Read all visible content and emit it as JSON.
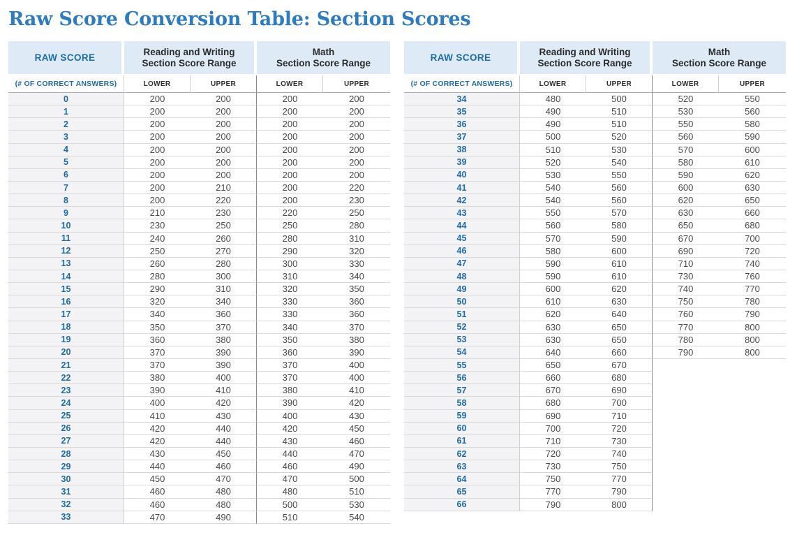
{
  "title": "Raw Score Conversion Table: Section Scores",
  "colors": {
    "title_blue": "#2E7BBF",
    "accent_blue": "#1E6BAC",
    "header_bg": "#DEEBF7"
  },
  "headers": {
    "raw_score": "RAW SCORE",
    "raw_score_sub": "(# OF CORRECT ANSWERS)",
    "reading_writing_line1": "Reading and Writing",
    "math_line1": "Math",
    "range_line2": "Section Score Range",
    "lower": "LOWER",
    "upper": "UPPER"
  },
  "left_table": {
    "rows": [
      [
        0,
        200,
        200,
        200,
        200
      ],
      [
        1,
        200,
        200,
        200,
        200
      ],
      [
        2,
        200,
        200,
        200,
        200
      ],
      [
        3,
        200,
        200,
        200,
        200
      ],
      [
        4,
        200,
        200,
        200,
        200
      ],
      [
        5,
        200,
        200,
        200,
        200
      ],
      [
        6,
        200,
        200,
        200,
        200
      ],
      [
        7,
        200,
        210,
        200,
        220
      ],
      [
        8,
        200,
        220,
        200,
        230
      ],
      [
        9,
        210,
        230,
        220,
        250
      ],
      [
        10,
        230,
        250,
        250,
        280
      ],
      [
        11,
        240,
        260,
        280,
        310
      ],
      [
        12,
        250,
        270,
        290,
        320
      ],
      [
        13,
        260,
        280,
        300,
        330
      ],
      [
        14,
        280,
        300,
        310,
        340
      ],
      [
        15,
        290,
        310,
        320,
        350
      ],
      [
        16,
        320,
        340,
        330,
        360
      ],
      [
        17,
        340,
        360,
        330,
        360
      ],
      [
        18,
        350,
        370,
        340,
        370
      ],
      [
        19,
        360,
        380,
        350,
        380
      ],
      [
        20,
        370,
        390,
        360,
        390
      ],
      [
        21,
        370,
        390,
        370,
        400
      ],
      [
        22,
        380,
        400,
        370,
        400
      ],
      [
        23,
        390,
        410,
        380,
        410
      ],
      [
        24,
        400,
        420,
        390,
        420
      ],
      [
        25,
        410,
        430,
        400,
        430
      ],
      [
        26,
        420,
        440,
        420,
        450
      ],
      [
        27,
        420,
        440,
        430,
        460
      ],
      [
        28,
        430,
        450,
        440,
        470
      ],
      [
        29,
        440,
        460,
        460,
        490
      ],
      [
        30,
        450,
        470,
        470,
        500
      ],
      [
        31,
        460,
        480,
        480,
        510
      ],
      [
        32,
        460,
        480,
        500,
        530
      ],
      [
        33,
        470,
        490,
        510,
        540
      ]
    ]
  },
  "right_table": {
    "rows": [
      [
        34,
        480,
        500,
        520,
        550
      ],
      [
        35,
        490,
        510,
        530,
        560
      ],
      [
        36,
        490,
        510,
        550,
        580
      ],
      [
        37,
        500,
        520,
        560,
        590
      ],
      [
        38,
        510,
        530,
        570,
        600
      ],
      [
        39,
        520,
        540,
        580,
        610
      ],
      [
        40,
        530,
        550,
        590,
        620
      ],
      [
        41,
        540,
        560,
        600,
        630
      ],
      [
        42,
        540,
        560,
        620,
        650
      ],
      [
        43,
        550,
        570,
        630,
        660
      ],
      [
        44,
        560,
        580,
        650,
        680
      ],
      [
        45,
        570,
        590,
        670,
        700
      ],
      [
        46,
        580,
        600,
        690,
        720
      ],
      [
        47,
        590,
        610,
        710,
        740
      ],
      [
        48,
        590,
        610,
        730,
        760
      ],
      [
        49,
        600,
        620,
        740,
        770
      ],
      [
        50,
        610,
        630,
        750,
        780
      ],
      [
        51,
        620,
        640,
        760,
        790
      ],
      [
        52,
        630,
        650,
        770,
        800
      ],
      [
        53,
        630,
        650,
        780,
        800
      ],
      [
        54,
        640,
        660,
        790,
        800
      ],
      [
        55,
        650,
        670,
        null,
        null
      ],
      [
        56,
        660,
        680,
        null,
        null
      ],
      [
        57,
        670,
        690,
        null,
        null
      ],
      [
        58,
        680,
        700,
        null,
        null
      ],
      [
        59,
        690,
        710,
        null,
        null
      ],
      [
        60,
        700,
        720,
        null,
        null
      ],
      [
        61,
        710,
        730,
        null,
        null
      ],
      [
        62,
        720,
        740,
        null,
        null
      ],
      [
        63,
        730,
        750,
        null,
        null
      ],
      [
        64,
        750,
        770,
        null,
        null
      ],
      [
        65,
        770,
        790,
        null,
        null
      ],
      [
        66,
        790,
        800,
        null,
        null
      ]
    ]
  }
}
